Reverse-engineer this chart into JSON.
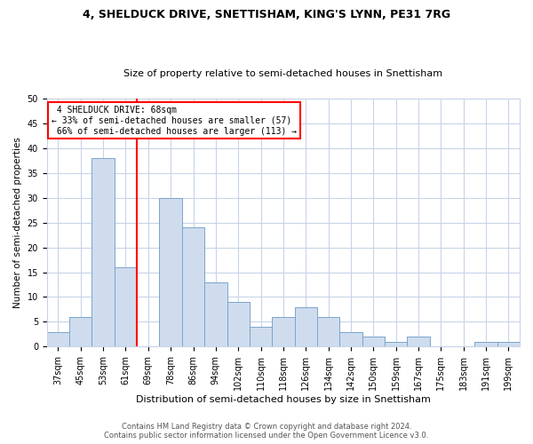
{
  "title": "4, SHELDUCK DRIVE, SNETTISHAM, KING'S LYNN, PE31 7RG",
  "subtitle": "Size of property relative to semi-detached houses in Snettisham",
  "xlabel": "Distribution of semi-detached houses by size in Snettisham",
  "ylabel": "Number of semi-detached properties",
  "footer_line1": "Contains HM Land Registry data © Crown copyright and database right 2024.",
  "footer_line2": "Contains public sector information licensed under the Open Government Licence v3.0.",
  "categories": [
    "37sqm",
    "45sqm",
    "53sqm",
    "61sqm",
    "69sqm",
    "78sqm",
    "86sqm",
    "94sqm",
    "102sqm",
    "110sqm",
    "118sqm",
    "126sqm",
    "134sqm",
    "142sqm",
    "150sqm",
    "159sqm",
    "167sqm",
    "175sqm",
    "183sqm",
    "191sqm",
    "199sqm"
  ],
  "values": [
    3,
    6,
    38,
    16,
    0,
    30,
    24,
    13,
    9,
    4,
    6,
    8,
    6,
    3,
    2,
    1,
    2,
    0,
    0,
    1,
    1
  ],
  "bar_color": "#cfdcee",
  "bar_edge_color": "#7aa4cc",
  "red_line_index": 4,
  "red_line_label": "4 SHELDUCK DRIVE: 68sqm",
  "pct_smaller": "33% of semi-detached houses are smaller (57)",
  "pct_larger": "66% of semi-detached houses are larger (113)",
  "ylim": [
    0,
    50
  ],
  "yticks": [
    0,
    5,
    10,
    15,
    20,
    25,
    30,
    35,
    40,
    45,
    50
  ],
  "annotation_box_color": "white",
  "annotation_box_edge_color": "red",
  "background_color": "white",
  "grid_color": "#c8d4e8",
  "title_fontsize": 9,
  "subtitle_fontsize": 8,
  "xlabel_fontsize": 8,
  "ylabel_fontsize": 7.5,
  "tick_fontsize": 7,
  "footer_fontsize": 6,
  "annot_fontsize": 7
}
